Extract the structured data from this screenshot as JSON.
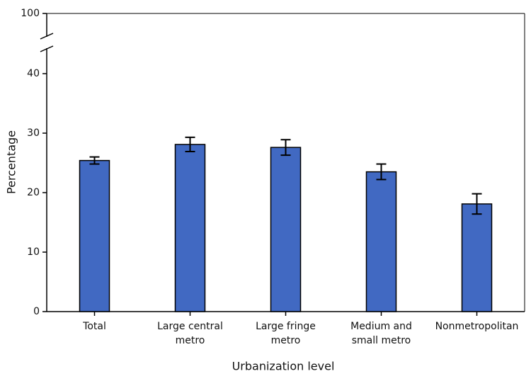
{
  "chart_data": {
    "type": "bar",
    "x_label": "Urbanization level",
    "y_label": "Percentage",
    "categories": [
      "Total",
      "Large central metro",
      "Large fringe metro",
      "Medium and small metro",
      "Nonmetropolitan"
    ],
    "values": [
      25.4,
      28.1,
      27.6,
      23.5,
      18.1
    ],
    "errors": [
      0.6,
      1.2,
      1.3,
      1.3,
      1.7
    ],
    "color": "#4169c2",
    "ylim": [
      0,
      100
    ],
    "yticks": [
      0,
      10,
      20,
      30,
      40,
      100
    ],
    "y_break": [
      40,
      100
    ]
  }
}
